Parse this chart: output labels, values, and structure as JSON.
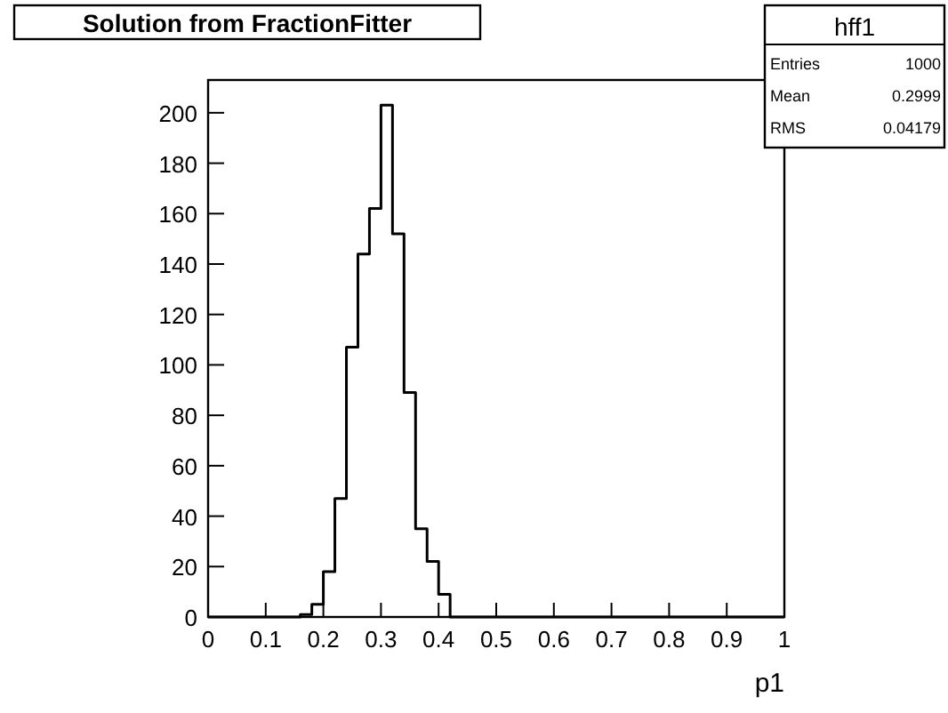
{
  "chart_data": {
    "type": "histogram",
    "title": "Solution from FractionFitter",
    "xlabel": "p1",
    "bins": [
      0,
      0.02,
      0.04,
      0.06,
      0.08,
      0.1,
      0.12,
      0.14,
      0.16,
      0.18,
      0.2,
      0.22,
      0.24,
      0.26,
      0.28,
      0.3,
      0.32,
      0.34,
      0.36,
      0.38,
      0.4,
      0.42,
      0.44,
      0.46,
      0.48,
      0.5,
      0.52,
      0.54,
      0.56,
      0.58,
      0.6,
      0.62,
      0.64,
      0.66,
      0.68,
      0.7,
      0.72,
      0.74,
      0.76,
      0.78,
      0.8,
      0.82,
      0.84,
      0.86,
      0.88,
      0.9,
      0.92,
      0.94,
      0.96,
      0.98,
      1
    ],
    "values": [
      0,
      0,
      0,
      0,
      0,
      0,
      0,
      0,
      1,
      5,
      18,
      47,
      107,
      144,
      162,
      203,
      152,
      89,
      35,
      22,
      9,
      0,
      0,
      0,
      0,
      0,
      0,
      0,
      0,
      0,
      0,
      0,
      0,
      0,
      0,
      0,
      0,
      0,
      0,
      0,
      0,
      0,
      0,
      0,
      0,
      0,
      0,
      0,
      0,
      0
    ],
    "color": "#000000",
    "xlim": [
      0,
      1
    ],
    "xticks": [
      0,
      0.1,
      0.2,
      0.3,
      0.4,
      0.5,
      0.6,
      0.7,
      0.8,
      0.9,
      1
    ],
    "ylim": [
      0,
      213
    ],
    "yticks": [
      0,
      20,
      40,
      60,
      80,
      100,
      120,
      140,
      160,
      180,
      200
    ],
    "annotations": [
      "hff1",
      "Entries",
      "1000",
      "Mean",
      "0.2999",
      "RMS",
      "0.04179"
    ]
  }
}
